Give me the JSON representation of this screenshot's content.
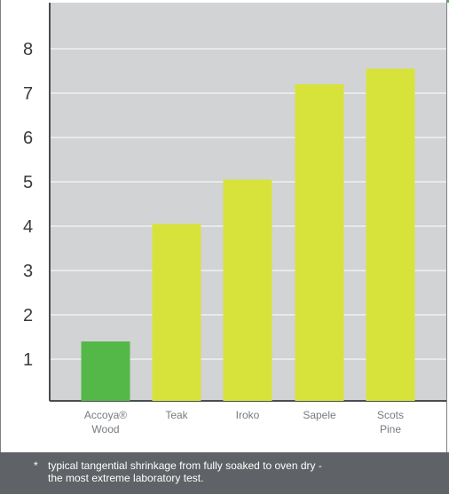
{
  "chart_data": {
    "type": "bar",
    "categories": [
      [
        "Accoya®",
        "Wood"
      ],
      [
        "Teak"
      ],
      [
        "Iroko"
      ],
      [
        "Sapele"
      ],
      [
        "Scots",
        "Pine"
      ]
    ],
    "values": [
      1.4,
      4.05,
      5.05,
      7.2,
      7.55
    ],
    "bar_colors": [
      "#54b848",
      "#d7e33b",
      "#d7e33b",
      "#d7e33b",
      "#d7e33b"
    ],
    "yticks": [
      "1",
      "2",
      "3",
      "4",
      "5",
      "6",
      "7",
      "8"
    ],
    "ylim": [
      0,
      9
    ],
    "grid": true,
    "plot_background": "#d2d3d5",
    "gridline_color": "#ffffff"
  },
  "footnote": {
    "marker": "*",
    "lines": [
      "typical tangential shrinkage from fully soaked to oven dry -",
      "the most extreme laboratory test."
    ]
  },
  "colors": {
    "accent_green": "#54b848",
    "bar_yellow": "#d7e33b",
    "footer_bg": "#5f6266"
  }
}
